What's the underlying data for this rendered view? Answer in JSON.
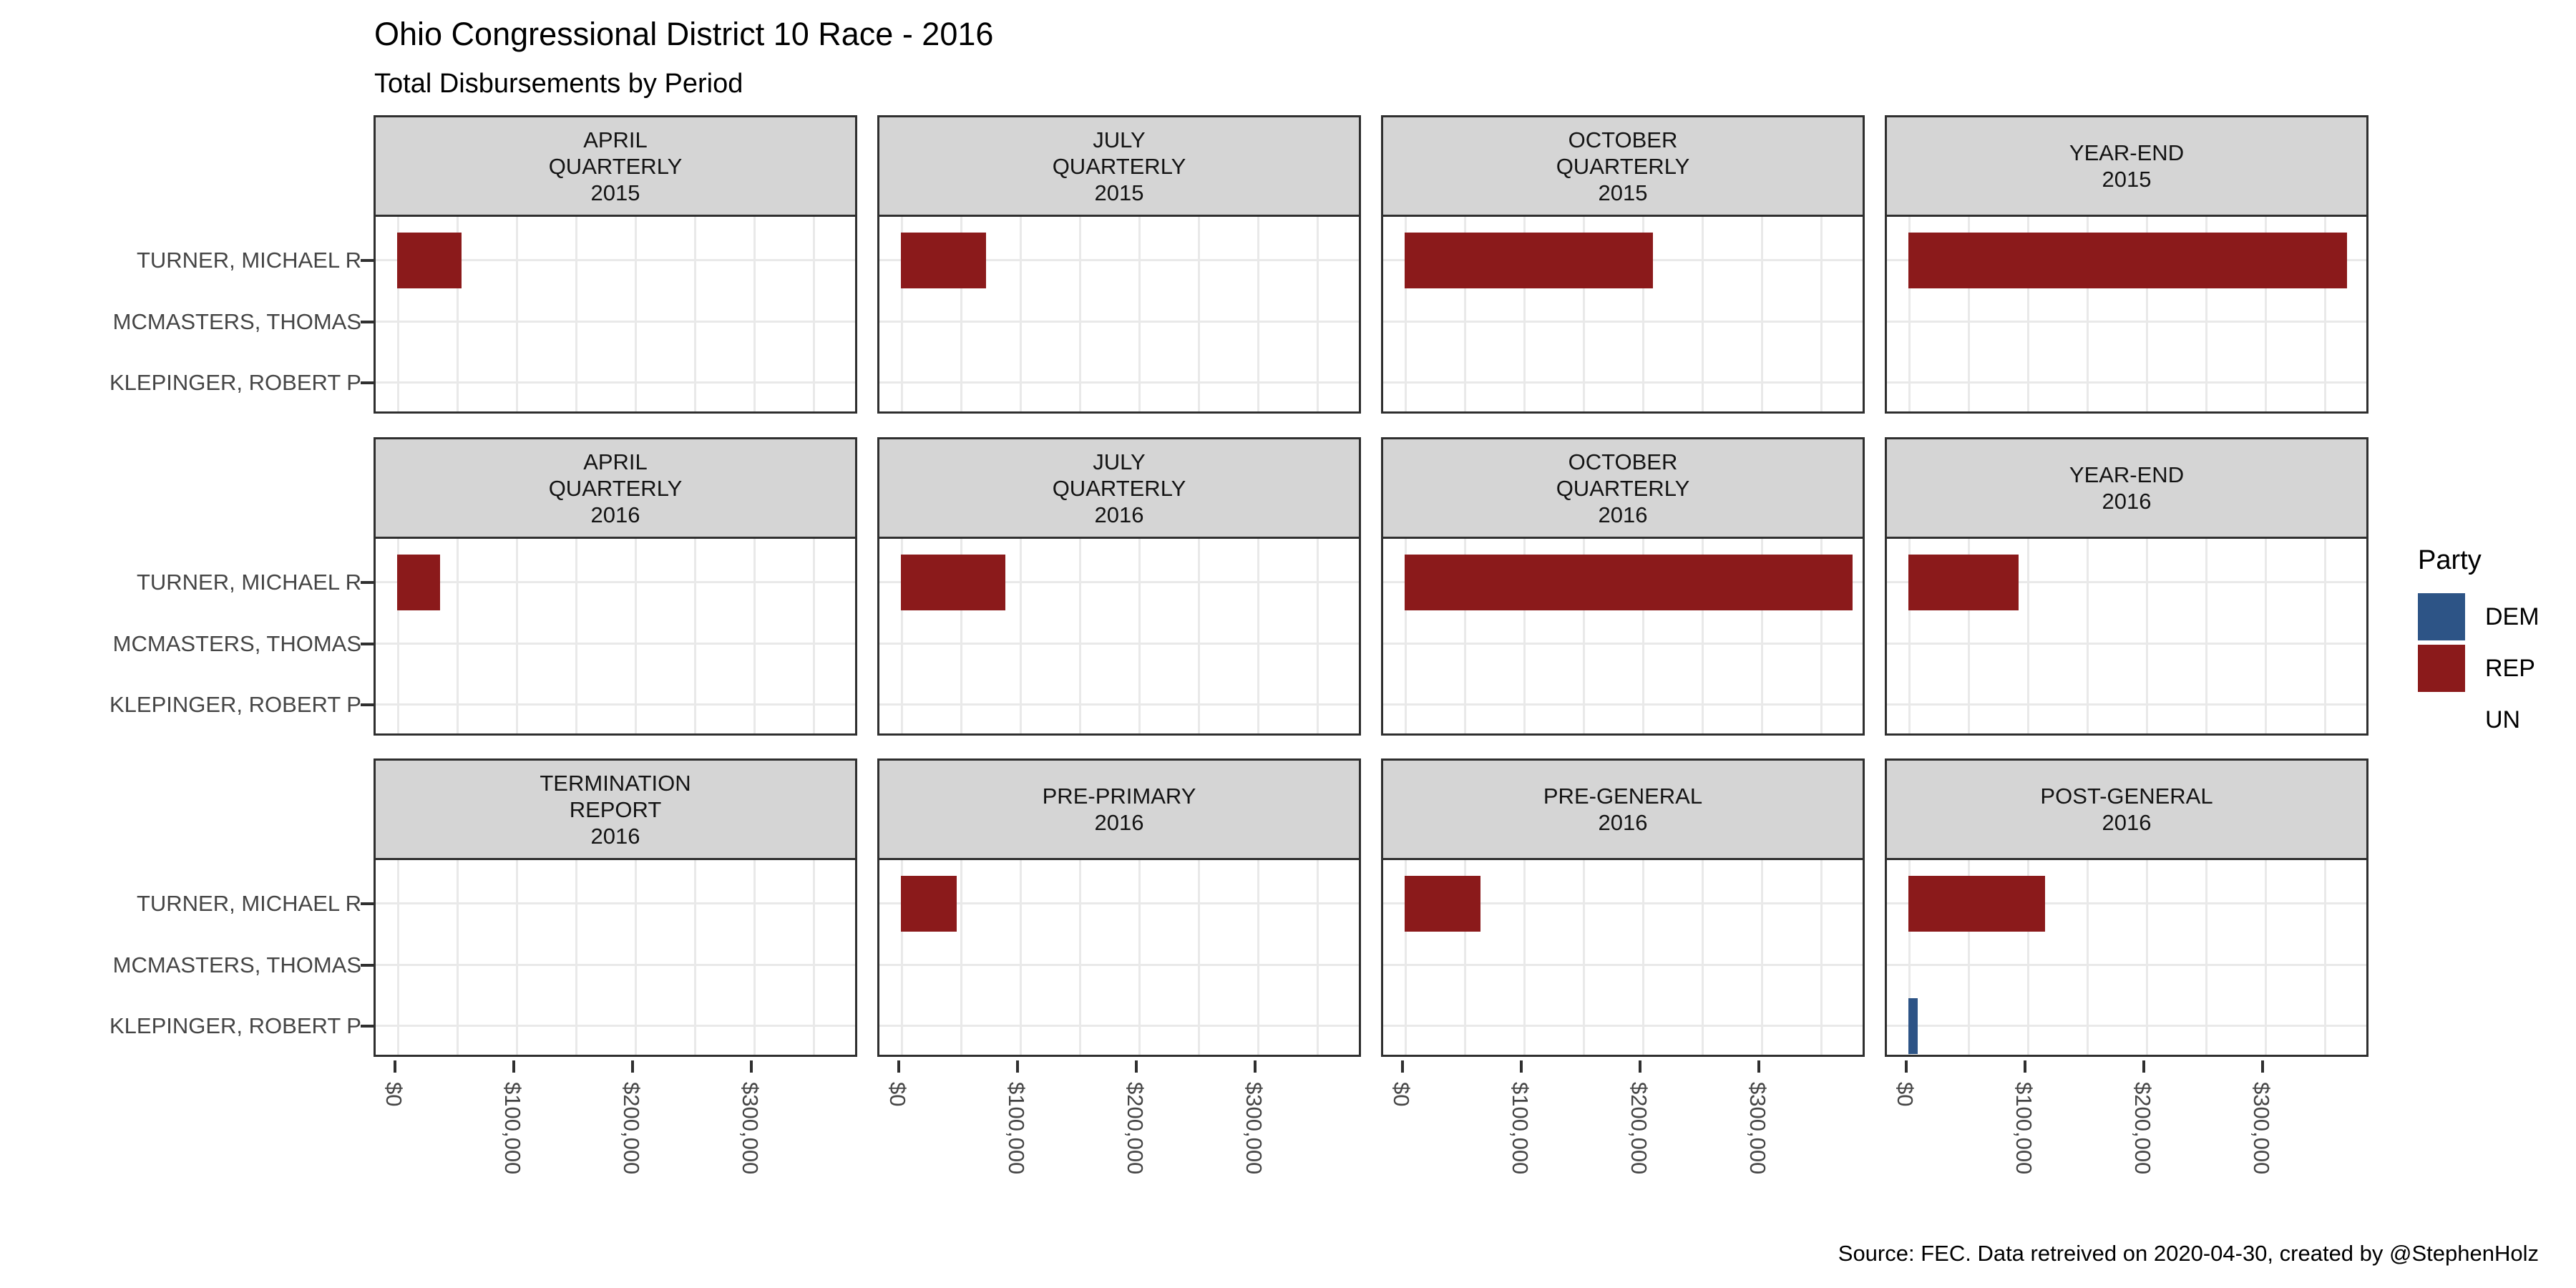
{
  "chart_data": {
    "type": "bar",
    "orientation": "horizontal",
    "title": "Ohio Congressional District 10 Race - 2016",
    "subtitle": "Total Disbursements by Period",
    "caption": "Source: FEC. Data retreived on 2020-04-30, created by @StephenHolz",
    "candidates": [
      "TURNER, MICHAEL R",
      "MCMASTERS, THOMAS",
      "KLEPINGER, ROBERT P"
    ],
    "candidate_parties": [
      "REP",
      "UN",
      "DEM"
    ],
    "party_colors": {
      "DEM": "#2d5486",
      "REP": "#8b1a1b",
      "UN": null
    },
    "x_tick_labels": [
      "$0",
      "$100,000",
      "$200,000",
      "$300,000"
    ],
    "x_tick_values": [
      0,
      100000,
      200000,
      300000
    ],
    "xlim": [
      0,
      390000
    ],
    "grid_step": 50000,
    "grid": "on",
    "legend_position": "right",
    "legend": {
      "title": "Party",
      "entries": [
        {
          "label": "DEM",
          "color": "#2d5486"
        },
        {
          "label": "REP",
          "color": "#8b1a1b"
        },
        {
          "label": "UN",
          "color": null
        }
      ]
    },
    "facets": [
      {
        "label": "APRIL QUARTERLY 2015",
        "label_lines": "APRIL\nQUARTERLY\n2015",
        "values": [
          54000,
          0,
          0
        ]
      },
      {
        "label": "JULY QUARTERLY 2015",
        "label_lines": "JULY\nQUARTERLY\n2015",
        "values": [
          71500,
          0,
          0
        ]
      },
      {
        "label": "OCTOBER QUARTERLY 2015",
        "label_lines": "OCTOBER\nQUARTERLY\n2015",
        "values": [
          209000,
          0,
          0
        ]
      },
      {
        "label": "YEAR-END 2015",
        "label_lines": "YEAR-END\n2015",
        "values": [
          369000,
          0,
          0
        ]
      },
      {
        "label": "APRIL QUARTERLY 2016",
        "label_lines": "APRIL\nQUARTERLY\n2016",
        "values": [
          36000,
          0,
          0
        ]
      },
      {
        "label": "JULY QUARTERLY 2016",
        "label_lines": "JULY\nQUARTERLY\n2016",
        "values": [
          88000,
          0,
          0
        ]
      },
      {
        "label": "OCTOBER QUARTERLY 2016",
        "label_lines": "OCTOBER\nQUARTERLY\n2016",
        "values": [
          377000,
          0,
          0
        ]
      },
      {
        "label": "YEAR-END 2016",
        "label_lines": "YEAR-END\n2016",
        "values": [
          93000,
          0,
          0
        ]
      },
      {
        "label": "TERMINATION REPORT 2016",
        "label_lines": "TERMINATION\nREPORT\n2016",
        "values": [
          0,
          0,
          0
        ]
      },
      {
        "label": "PRE-PRIMARY 2016",
        "label_lines": "PRE-PRIMARY\n2016",
        "values": [
          47000,
          0,
          0
        ]
      },
      {
        "label": "PRE-GENERAL 2016",
        "label_lines": "PRE-GENERAL\n2016",
        "values": [
          64000,
          0,
          0
        ]
      },
      {
        "label": "POST-GENERAL 2016",
        "label_lines": "POST-GENERAL\n2016",
        "values": [
          115000,
          0,
          8000
        ]
      }
    ]
  }
}
